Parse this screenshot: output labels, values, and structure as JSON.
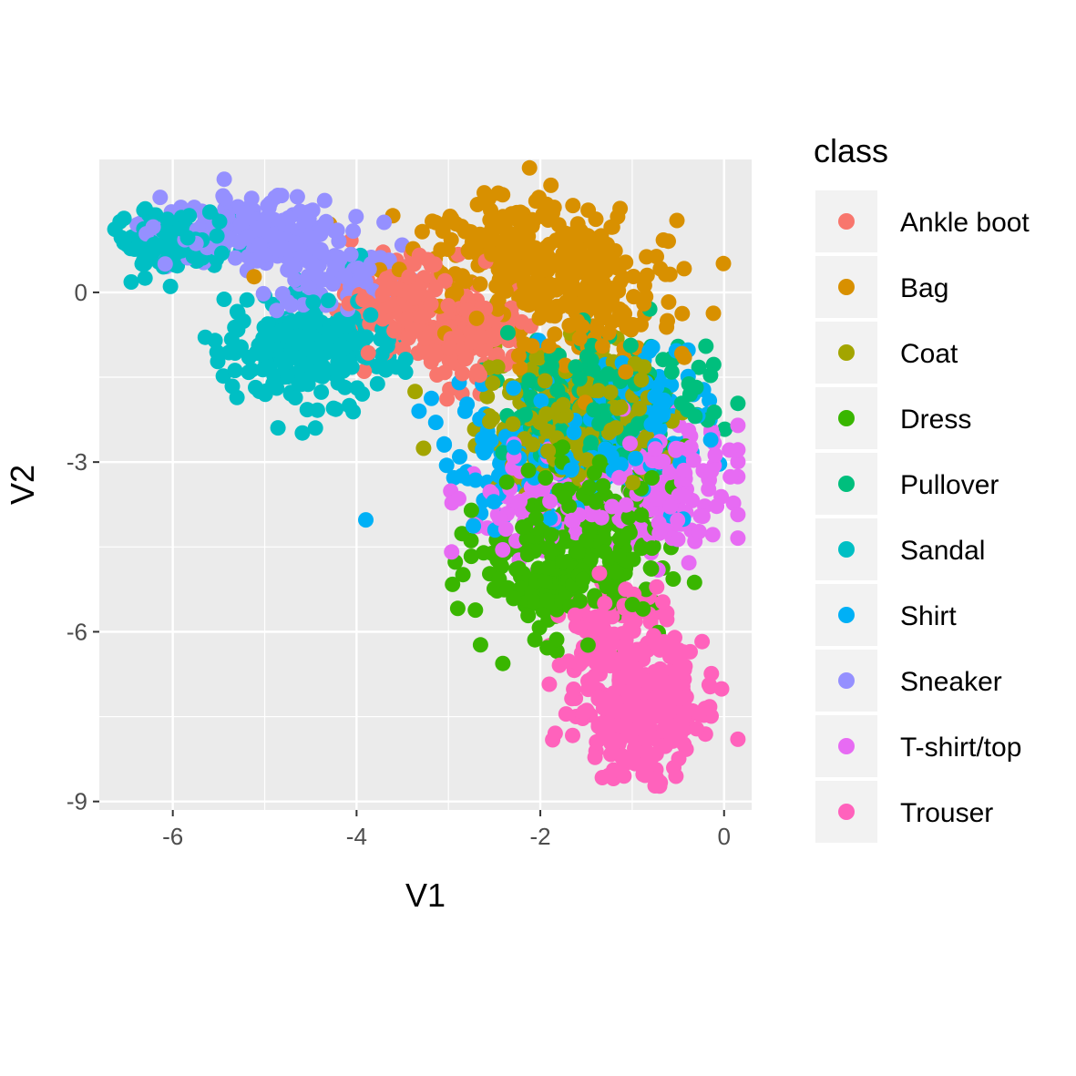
{
  "chart_data": {
    "type": "scatter",
    "title": "",
    "xlabel": "V1",
    "ylabel": "V2",
    "xlim": [
      -6.8,
      0.3
    ],
    "ylim": [
      -9.15,
      2.35
    ],
    "x_ticks": [
      -6,
      -4,
      -2,
      0
    ],
    "y_ticks": [
      0,
      -3,
      -6,
      -9
    ],
    "x_tick_labels": [
      "-6",
      "-4",
      "-2",
      "0"
    ],
    "y_tick_labels": [
      "0",
      "-3",
      "-6",
      "-9"
    ],
    "grid": true,
    "legend_title": "class",
    "legend_position": "right",
    "series": [
      {
        "name": "Ankle boot",
        "color": "#F8766D",
        "center": [
          -3.2,
          -0.6
        ],
        "spread": [
          0.35,
          0.5
        ],
        "n": 260,
        "clusters": [
          [
            -3.6,
            -0.1,
            0.3,
            0.4,
            0.5
          ],
          [
            -2.9,
            -0.7,
            0.3,
            0.45,
            0.5
          ]
        ]
      },
      {
        "name": "Bag",
        "color": "#D89000",
        "center": [
          -2.0,
          0.3
        ],
        "spread": [
          0.75,
          0.8
        ],
        "n": 420,
        "clusters": [
          [
            -2.3,
            0.7,
            0.7,
            0.5,
            0.6
          ],
          [
            -1.5,
            -0.2,
            0.5,
            0.6,
            0.4
          ]
        ]
      },
      {
        "name": "Coat",
        "color": "#A3A500",
        "center": [
          -1.7,
          -2.4
        ],
        "spread": [
          0.5,
          0.6
        ],
        "n": 220,
        "clusters": [
          [
            -1.7,
            -2.3,
            0.5,
            0.6,
            1.0
          ]
        ]
      },
      {
        "name": "Dress",
        "color": "#39B600",
        "center": [
          -1.6,
          -4.8
        ],
        "spread": [
          0.45,
          0.7
        ],
        "n": 320,
        "clusters": [
          [
            -1.9,
            -4.8,
            0.4,
            0.6,
            0.5
          ],
          [
            -1.3,
            -4.3,
            0.35,
            0.8,
            0.5
          ]
        ]
      },
      {
        "name": "Pullover",
        "color": "#00BF7D",
        "center": [
          -1.3,
          -2.0
        ],
        "spread": [
          0.5,
          0.6
        ],
        "n": 220,
        "clusters": [
          [
            -1.3,
            -2.0,
            0.5,
            0.6,
            1.0
          ]
        ]
      },
      {
        "name": "Sandal",
        "color": "#00BFC4",
        "center": [
          -4.6,
          -0.8
        ],
        "spread": [
          0.8,
          0.55
        ],
        "n": 380,
        "clusters": [
          [
            -6.0,
            0.9,
            0.3,
            0.3,
            0.35
          ],
          [
            -4.5,
            -1.0,
            0.45,
            0.5,
            0.65
          ]
        ]
      },
      {
        "name": "Shirt",
        "color": "#00B0F6",
        "center": [
          -1.6,
          -3.0
        ],
        "spread": [
          0.7,
          0.8
        ],
        "n": 240,
        "clusters": [
          [
            -2.2,
            -3.0,
            0.5,
            0.6,
            0.5
          ],
          [
            -0.9,
            -2.2,
            0.35,
            0.7,
            0.5
          ]
        ]
      },
      {
        "name": "Sneaker",
        "color": "#9590FF",
        "center": [
          -5.0,
          0.8
        ],
        "spread": [
          0.5,
          0.35
        ],
        "n": 260,
        "clusters": [
          [
            -5.2,
            1.1,
            0.5,
            0.35,
            0.6
          ],
          [
            -4.2,
            0.3,
            0.4,
            0.35,
            0.4
          ]
        ]
      },
      {
        "name": "T-shirt/top",
        "color": "#E76BF3",
        "center": [
          -0.8,
          -3.4
        ],
        "spread": [
          0.5,
          0.6
        ],
        "n": 240,
        "clusters": [
          [
            -0.6,
            -3.4,
            0.35,
            0.55,
            0.6
          ],
          [
            -2.0,
            -3.8,
            0.4,
            0.4,
            0.4
          ]
        ]
      },
      {
        "name": "Trouser",
        "color": "#FF62BC",
        "center": [
          -0.9,
          -7.4
        ],
        "spread": [
          0.35,
          0.55
        ],
        "n": 420,
        "clusters": [
          [
            -0.9,
            -7.4,
            0.35,
            0.55,
            0.8
          ],
          [
            -1.2,
            -5.9,
            0.3,
            0.5,
            0.2
          ]
        ]
      }
    ]
  }
}
